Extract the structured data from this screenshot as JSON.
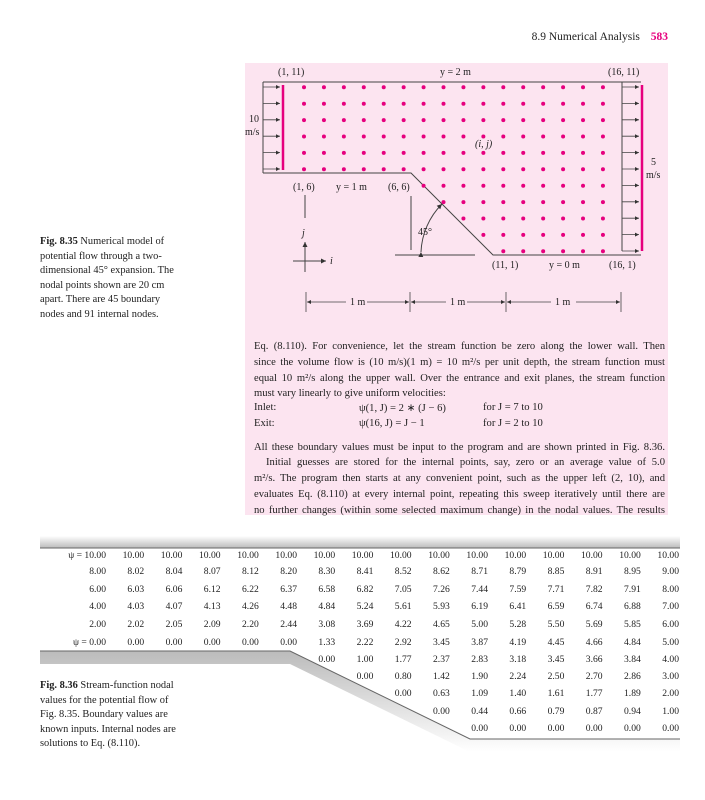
{
  "header": {
    "section": "8.9 Numerical Analysis",
    "page_number": "583",
    "page_number_color": "#e6007e"
  },
  "figure_8_35": {
    "caption_label": "Fig. 8.35",
    "caption_text": [
      "Numerical model of",
      "potential flow through a two-",
      "dimensional 45° expansion. The",
      "nodal points shown are 20 cm",
      "apart. There are 45 boundary",
      "nodes and 91 internal nodes."
    ],
    "labels": {
      "top_left": "(1, 11)",
      "top_wall": "y = 2 m",
      "top_right": "(16, 11)",
      "inlet_speed": "10",
      "inlet_unit": "m/s",
      "exit_speed": "5",
      "exit_unit": "m/s",
      "node": "(i, j)",
      "step_left": "(1, 6)",
      "step_wall": "y = 1 m",
      "step_corner": "(6, 6)",
      "angle": "45°",
      "axis_j": "j",
      "axis_i": "i",
      "bottom_left": "(11, 1)",
      "bottom_wall": "y = 0 m",
      "bottom_right": "(16, 1)",
      "dimensions": [
        "1 m",
        "1 m",
        "1 m"
      ]
    },
    "node_color": "#e6007e",
    "background_color": "#fce4f0"
  },
  "body_text": {
    "para1": [
      "Eq. (8.110). For convenience, let the stream function be zero along the lower wall. Then",
      "since the volume flow is (10 m/s)(1 m) = 10 m²/s per unit depth, the stream function must",
      "equal 10 m²/s along the upper wall. Over the entrance and exit planes, the stream function",
      "must vary linearly to give uniform velocities:"
    ],
    "inlet": {
      "label": "Inlet:",
      "equation": "ψ(1, J) = 2 ∗ (J − 6)",
      "range": "for J = 7 to 10"
    },
    "exit": {
      "label": "Exit:",
      "equation": "ψ(16, J) = J − 1",
      "range": "for J = 2 to 10"
    },
    "para2": [
      "All these boundary values must be input to the program and are shown printed in Fig. 8.36.",
      "Initial guesses are stored for the internal points, say, zero or an average value of 5.0",
      "m²/s. The program then starts at any convenient point, such as the upper left (2, 10), and",
      "evaluates Eq. (8.110) at every internal point, repeating this sweep iteratively until there are",
      "no further changes (within some selected maximum change) in the nodal values. The results"
    ]
  },
  "figure_8_36": {
    "caption_label": "Fig. 8.36",
    "caption_text": [
      "Stream-function nodal",
      "values for the potential flow of",
      "Fig. 8.35. Boundary values are",
      "known inputs. Internal nodes are",
      "solutions to Eq. (8.110)."
    ],
    "rows": [
      [
        "ψ = 10.00",
        "10.00",
        "10.00",
        "10.00",
        "10.00",
        "10.00",
        "10.00",
        "10.00",
        "10.00",
        "10.00",
        "10.00",
        "10.00",
        "10.00",
        "10.00",
        "10.00",
        "10.00"
      ],
      [
        "8.00",
        "8.02",
        "8.04",
        "8.07",
        "8.12",
        "8.20",
        "8.30",
        "8.41",
        "8.52",
        "8.62",
        "8.71",
        "8.79",
        "8.85",
        "8.91",
        "8.95",
        "9.00"
      ],
      [
        "6.00",
        "6.03",
        "6.06",
        "6.12",
        "6.22",
        "6.37",
        "6.58",
        "6.82",
        "7.05",
        "7.26",
        "7.44",
        "7.59",
        "7.71",
        "7.82",
        "7.91",
        "8.00"
      ],
      [
        "4.00",
        "4.03",
        "4.07",
        "4.13",
        "4.26",
        "4.48",
        "4.84",
        "5.24",
        "5.61",
        "5.93",
        "6.19",
        "6.41",
        "6.59",
        "6.74",
        "6.88",
        "7.00"
      ],
      [
        "2.00",
        "2.02",
        "2.05",
        "2.09",
        "2.20",
        "2.44",
        "3.08",
        "3.69",
        "4.22",
        "4.65",
        "5.00",
        "5.28",
        "5.50",
        "5.69",
        "5.85",
        "6.00"
      ],
      [
        "ψ = 0.00",
        "0.00",
        "0.00",
        "0.00",
        "0.00",
        "0.00",
        "1.33",
        "2.22",
        "2.92",
        "3.45",
        "3.87",
        "4.19",
        "4.45",
        "4.66",
        "4.84",
        "5.00"
      ],
      [
        null,
        null,
        null,
        null,
        null,
        null,
        "0.00",
        "1.00",
        "1.77",
        "2.37",
        "2.83",
        "3.18",
        "3.45",
        "3.66",
        "3.84",
        "4.00"
      ],
      [
        null,
        null,
        null,
        null,
        null,
        null,
        null,
        "0.00",
        "0.80",
        "1.42",
        "1.90",
        "2.24",
        "2.50",
        "2.70",
        "2.86",
        "3.00"
      ],
      [
        null,
        null,
        null,
        null,
        null,
        null,
        null,
        null,
        "0.00",
        "0.63",
        "1.09",
        "1.40",
        "1.61",
        "1.77",
        "1.89",
        "2.00"
      ],
      [
        null,
        null,
        null,
        null,
        null,
        null,
        null,
        null,
        null,
        "0.00",
        "0.44",
        "0.66",
        "0.79",
        "0.87",
        "0.94",
        "1.00"
      ],
      [
        null,
        null,
        null,
        null,
        null,
        null,
        null,
        null,
        null,
        null,
        "0.00",
        "0.00",
        "0.00",
        "0.00",
        "0.00",
        "0.00"
      ]
    ]
  }
}
